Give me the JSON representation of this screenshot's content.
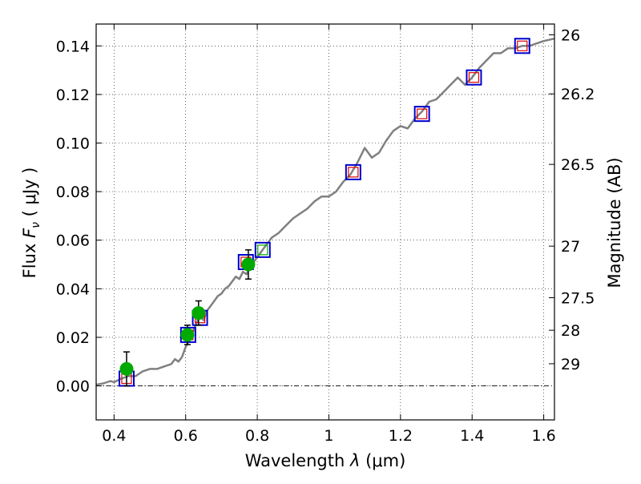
{
  "chart_data": {
    "type": "scatter",
    "title": "",
    "xlabel": {
      "prefix": "Wavelength ",
      "symbol": "λ",
      "unit": " (μm)"
    },
    "ylabel": {
      "prefix": "Flux  ",
      "symbol": "F",
      "subscript": "ν",
      "unit": "  ( μJy )"
    },
    "y2label": "Magnitude (AB)",
    "xlim": [
      0.35,
      1.63
    ],
    "ylim": [
      -0.014,
      0.149
    ],
    "grid": true,
    "grid_style": "dotted",
    "x_ticks": [
      {
        "value": 0.4,
        "label": "0.4"
      },
      {
        "value": 0.6,
        "label": "0.6"
      },
      {
        "value": 0.8,
        "label": "0.8"
      },
      {
        "value": 1.0,
        "label": "1"
      },
      {
        "value": 1.2,
        "label": "1.2"
      },
      {
        "value": 1.4,
        "label": "1.4"
      },
      {
        "value": 1.6,
        "label": "1.6"
      }
    ],
    "y_ticks": [
      {
        "value": 0.0,
        "label": "0.00"
      },
      {
        "value": 0.02,
        "label": "0.02"
      },
      {
        "value": 0.04,
        "label": "0.04"
      },
      {
        "value": 0.06,
        "label": "0.06"
      },
      {
        "value": 0.08,
        "label": "0.08"
      },
      {
        "value": 0.1,
        "label": "0.10"
      },
      {
        "value": 0.12,
        "label": "0.12"
      },
      {
        "value": 0.14,
        "label": "0.14"
      }
    ],
    "y2_ticks": [
      {
        "mag": 26,
        "label": "26"
      },
      {
        "mag": 26.2,
        "label": "26.2"
      },
      {
        "mag": 26.5,
        "label": "26.5"
      },
      {
        "mag": 27,
        "label": "27"
      },
      {
        "mag": 27.5,
        "label": "27.5"
      },
      {
        "mag": 28,
        "label": "28"
      },
      {
        "mag": 29,
        "label": "29"
      }
    ],
    "zero_line": 0.0,
    "colors": {
      "model": "#808080",
      "observed": "#00aa00",
      "synthetic_box": "#0000cc",
      "inner_red": "#dd0000",
      "inner_green": "#00aa00",
      "errorbar": "#000000"
    },
    "series": [
      {
        "kind": "line",
        "x": [
          0.35,
          0.37,
          0.39,
          0.4,
          0.42,
          0.44,
          0.46,
          0.48,
          0.5,
          0.52,
          0.54,
          0.56,
          0.57,
          0.58,
          0.59,
          0.6,
          0.61,
          0.62,
          0.63,
          0.64,
          0.65,
          0.66,
          0.67,
          0.68,
          0.69,
          0.7,
          0.71,
          0.72,
          0.73,
          0.74,
          0.75,
          0.76,
          0.77,
          0.78,
          0.8,
          0.82,
          0.84,
          0.86,
          0.88,
          0.9,
          0.92,
          0.94,
          0.96,
          0.98,
          1.0,
          1.02,
          1.04,
          1.06,
          1.08,
          1.1,
          1.12,
          1.14,
          1.16,
          1.18,
          1.2,
          1.22,
          1.24,
          1.26,
          1.28,
          1.3,
          1.32,
          1.34,
          1.36,
          1.38,
          1.4,
          1.42,
          1.44,
          1.46,
          1.48,
          1.5,
          1.52,
          1.54,
          1.56,
          1.58,
          1.6,
          1.63
        ],
        "values": [
          0.0005,
          0.001,
          0.002,
          0.0015,
          0.003,
          0.004,
          0.004,
          0.006,
          0.007,
          0.007,
          0.008,
          0.009,
          0.011,
          0.01,
          0.012,
          0.016,
          0.019,
          0.022,
          0.026,
          0.029,
          0.027,
          0.031,
          0.033,
          0.035,
          0.037,
          0.038,
          0.04,
          0.041,
          0.043,
          0.045,
          0.044,
          0.047,
          0.046,
          0.049,
          0.053,
          0.057,
          0.061,
          0.063,
          0.066,
          0.069,
          0.071,
          0.073,
          0.076,
          0.078,
          0.078,
          0.08,
          0.084,
          0.087,
          0.092,
          0.098,
          0.094,
          0.096,
          0.101,
          0.105,
          0.107,
          0.106,
          0.11,
          0.113,
          0.117,
          0.118,
          0.121,
          0.124,
          0.127,
          0.124,
          0.127,
          0.131,
          0.134,
          0.137,
          0.137,
          0.139,
          0.139,
          0.14,
          0.14,
          0.141,
          0.142,
          0.143
        ]
      },
      {
        "kind": "errorbar",
        "x": [
          0.435,
          0.605,
          0.636,
          0.775
        ],
        "values": [
          0.007,
          0.021,
          0.03,
          0.05
        ],
        "err": [
          0.007,
          0.004,
          0.005,
          0.006
        ]
      },
      {
        "kind": "boxes",
        "x": [
          0.435,
          0.607,
          0.64,
          0.768,
          0.815,
          1.068,
          1.26,
          1.405,
          1.54
        ],
        "values": [
          0.003,
          0.021,
          0.028,
          0.051,
          0.056,
          0.088,
          0.112,
          0.127,
          0.14
        ],
        "inner": [
          "red",
          "red",
          "red",
          "red",
          "green",
          "red",
          "red",
          "red",
          "red"
        ]
      }
    ]
  }
}
